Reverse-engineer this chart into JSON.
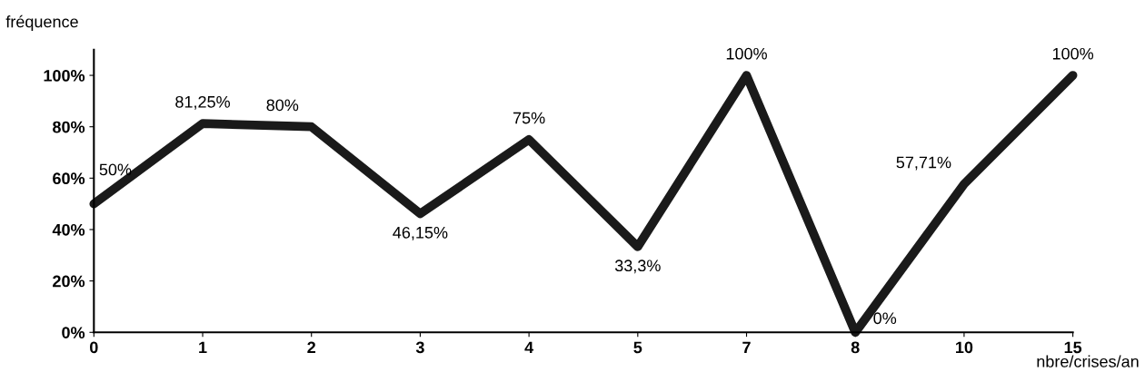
{
  "chart_data": {
    "type": "line",
    "categories": [
      "0",
      "1",
      "2",
      "3",
      "4",
      "5",
      "7",
      "8",
      "10",
      "15"
    ],
    "values": [
      50,
      81.25,
      80,
      46.15,
      75,
      33.3,
      100,
      0,
      57.71,
      100
    ],
    "value_labels": [
      "50%",
      "81,25%",
      "80%",
      "46,15%",
      "75%",
      "33,3%",
      "100%",
      "0%",
      "57,71%",
      "100%"
    ],
    "color": "#1a1a1a",
    "ylabel": "fréquence",
    "xlabel": "nbre/crises/an",
    "ylim": [
      0,
      110
    ],
    "yticks": [
      {
        "value": 0,
        "label": "0%"
      },
      {
        "value": 20,
        "label": "20%"
      },
      {
        "value": 40,
        "label": "40%"
      },
      {
        "value": 60,
        "label": "60%"
      },
      {
        "value": 80,
        "label": "80%"
      },
      {
        "value": 100,
        "label": "100%"
      }
    ],
    "grid": false,
    "marker": "none",
    "line_style": "solid"
  }
}
